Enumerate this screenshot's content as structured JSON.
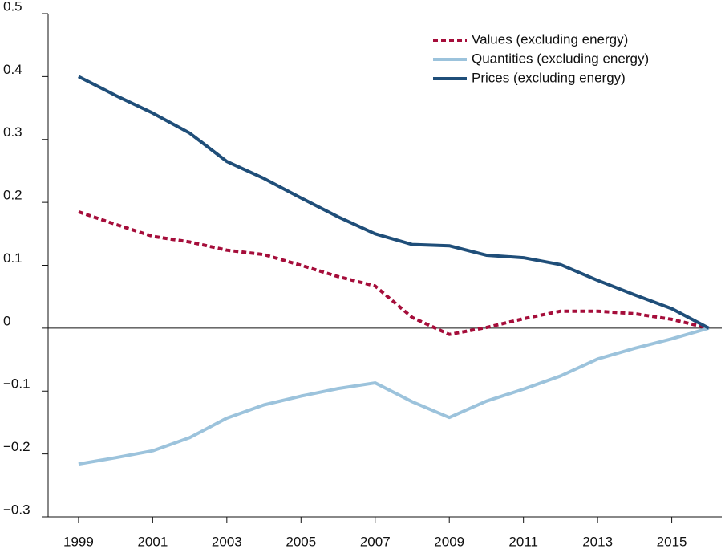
{
  "chart_data": {
    "type": "line",
    "x": [
      1999,
      2000,
      2001,
      2002,
      2003,
      2004,
      2005,
      2006,
      2007,
      2008,
      2009,
      2010,
      2011,
      2012,
      2013,
      2014,
      2015,
      2016
    ],
    "series": [
      {
        "name": "Values (excluding energy)",
        "color": "#a50d3a",
        "dash": true,
        "values": [
          0.185,
          0.165,
          0.146,
          0.137,
          0.124,
          0.117,
          0.1,
          0.082,
          0.067,
          0.017,
          -0.01,
          0.001,
          0.015,
          0.027,
          0.027,
          0.023,
          0.014,
          0
        ]
      },
      {
        "name": "Quantities (excluding energy)",
        "color": "#9cc3dc",
        "values": [
          -0.216,
          -0.206,
          -0.195,
          -0.174,
          -0.143,
          -0.122,
          -0.108,
          -0.096,
          -0.087,
          -0.117,
          -0.142,
          -0.116,
          -0.097,
          -0.076,
          -0.049,
          -0.032,
          -0.017,
          0
        ]
      },
      {
        "name": "Prices (excluding energy)",
        "color": "#1f4e79",
        "values": [
          0.4,
          0.37,
          0.342,
          0.31,
          0.265,
          0.238,
          0.207,
          0.177,
          0.15,
          0.133,
          0.131,
          0.116,
          0.112,
          0.101,
          0.076,
          0.053,
          0.031,
          0
        ]
      }
    ],
    "xlim": [
      1998.18,
      2016.35
    ],
    "xticks": [
      1999,
      2001,
      2003,
      2005,
      2007,
      2009,
      2011,
      2013,
      2015
    ],
    "ylim": [
      -0.3,
      0.5
    ],
    "yticks": [
      0.5,
      0.4,
      0.3,
      0.2,
      0.1,
      0,
      {
        "value": -0.1,
        "label": "−0.1"
      },
      {
        "value": -0.2,
        "label": "−0.2"
      },
      {
        "value": -0.3,
        "label": "−0.3"
      }
    ],
    "legend": "upper right"
  }
}
